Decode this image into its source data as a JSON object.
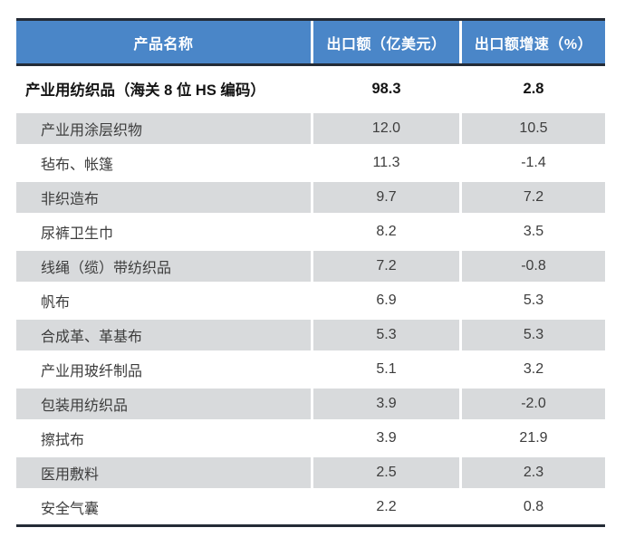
{
  "colors": {
    "header_bg": "#4a86c8",
    "header_text": "#ffffff",
    "stripe_bg": "#d8dadc",
    "border_dark": "#242b36",
    "body_text": "#3d3d3d",
    "summary_text": "#141414"
  },
  "table": {
    "columns": [
      "产品名称",
      "出口额（亿美元）",
      "出口额增速（%）"
    ],
    "summary_row": {
      "name": "产业用纺织品（海关 8 位 HS 编码）",
      "export_value": "98.3",
      "growth": "2.8"
    },
    "rows": [
      {
        "name": "产业用涂层织物",
        "export_value": "12.0",
        "growth": "10.5"
      },
      {
        "name": "毡布、帐篷",
        "export_value": "11.3",
        "growth": "-1.4"
      },
      {
        "name": "非织造布",
        "export_value": "9.7",
        "growth": "7.2"
      },
      {
        "name": "尿裤卫生巾",
        "export_value": "8.2",
        "growth": "3.5"
      },
      {
        "name": "线绳（缆）带纺织品",
        "export_value": "7.2",
        "growth": "-0.8"
      },
      {
        "name": "帆布",
        "export_value": "6.9",
        "growth": "5.3"
      },
      {
        "name": "合成革、革基布",
        "export_value": "5.3",
        "growth": "5.3"
      },
      {
        "name": "产业用玻纤制品",
        "export_value": "5.1",
        "growth": "3.2"
      },
      {
        "name": "包装用纺织品",
        "export_value": "3.9",
        "growth": "-2.0"
      },
      {
        "name": "擦拭布",
        "export_value": "3.9",
        "growth": "21.9"
      },
      {
        "name": "医用敷料",
        "export_value": "2.5",
        "growth": "2.3"
      },
      {
        "name": "安全气囊",
        "export_value": "2.2",
        "growth": "0.8"
      }
    ]
  }
}
